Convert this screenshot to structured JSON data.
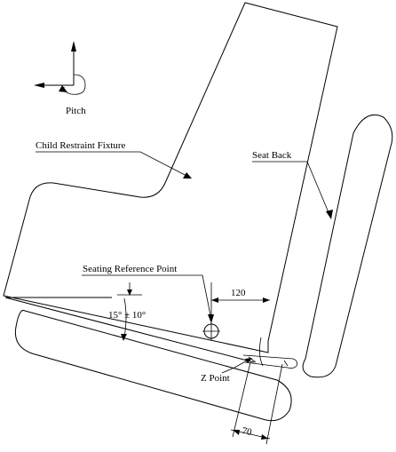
{
  "diagram": {
    "labels": {
      "pitch": "Pitch",
      "child_restraint_fixture": "Child Restraint Fixture",
      "seat_back": "Seat Back",
      "seating_reference_point": "Seating Reference Point",
      "angle": "15° ± 10°",
      "z_point": "Z Point",
      "dim_120": "120",
      "dim_70": "70"
    }
  }
}
